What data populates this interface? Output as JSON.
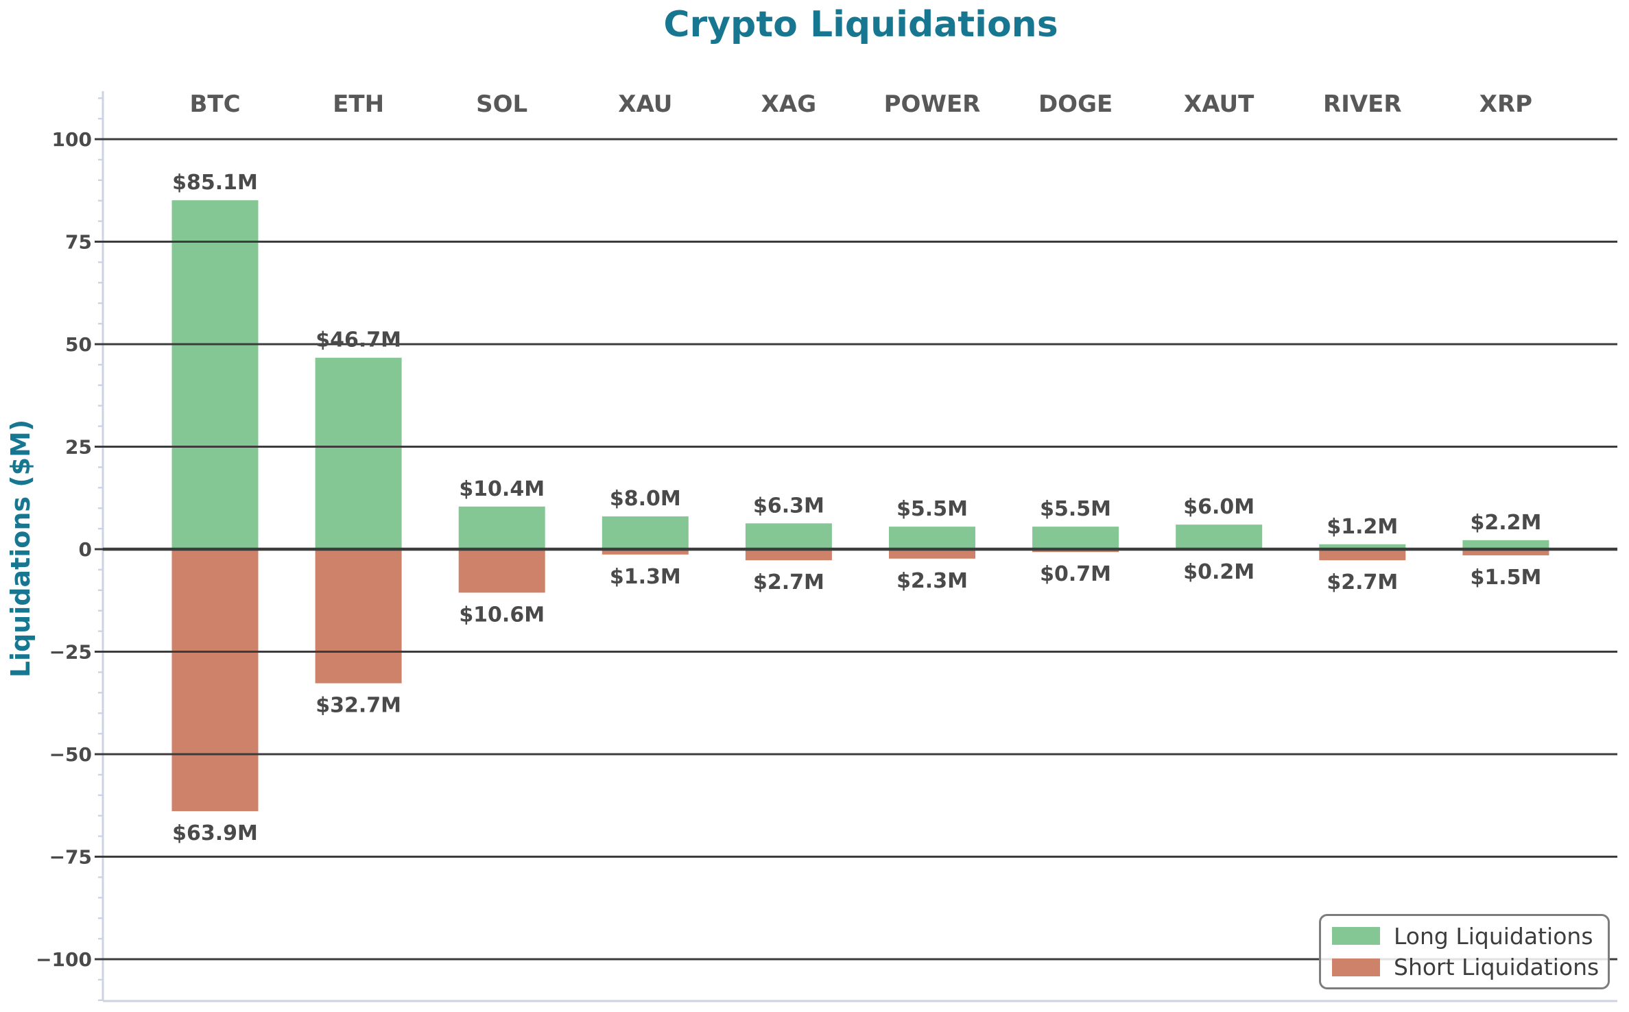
{
  "chart_data": {
    "type": "bar",
    "title": "Crypto Liquidations",
    "ylabel": "Liquidations ($M)",
    "xlabel": "",
    "categories": [
      "BTC",
      "ETH",
      "SOL",
      "XAU",
      "XAG",
      "POWER",
      "DOGE",
      "XAUT",
      "RIVER",
      "XRP"
    ],
    "series": [
      {
        "name": "Long Liquidations",
        "color": "#85c794",
        "values": [
          85.1,
          46.7,
          10.4,
          8.0,
          6.3,
          5.5,
          5.5,
          6.0,
          1.2,
          2.2
        ],
        "value_labels": [
          "$85.1M",
          "$46.7M",
          "$10.4M",
          "$8.0M",
          "$6.3M",
          "$5.5M",
          "$5.5M",
          "$6.0M",
          "$1.2M",
          "$2.2M"
        ]
      },
      {
        "name": "Short Liquidations",
        "color": "#cd8269",
        "values": [
          -63.9,
          -32.7,
          -10.6,
          -1.3,
          -2.7,
          -2.3,
          -0.7,
          -0.2,
          -2.7,
          -1.5
        ],
        "value_labels": [
          "$63.9M",
          "$32.7M",
          "$10.6M",
          "$1.3M",
          "$2.7M",
          "$2.3M",
          "$0.7M",
          "$0.2M",
          "$2.7M",
          "$1.5M"
        ]
      }
    ],
    "yticks": [
      100,
      75,
      50,
      25,
      0,
      -25,
      -50,
      -75,
      -100
    ],
    "ytick_labels": [
      "100",
      "75",
      "50",
      "25",
      "0",
      "−25",
      "−50",
      "−75",
      "−100"
    ],
    "ylim": [
      -110,
      111.7
    ],
    "minor_tick_step": 5,
    "grid": "horizontal",
    "legend_position": "lower right"
  },
  "colors": {
    "title": "#177791",
    "ylabel": "#177791",
    "grid": "#3c3c3c",
    "zero_line": "#3c3c3c",
    "spine": "#ccd3e3",
    "minor_tick": "#ccd3e3",
    "major_tick": "#3c3c3c",
    "tick_label": "#4a4a4a",
    "category_label": "#585858",
    "value_label": "#4a4a4a",
    "legend_border": "#7d7d7d",
    "legend_text": "#3d3d3d",
    "background": "#ffffff"
  }
}
